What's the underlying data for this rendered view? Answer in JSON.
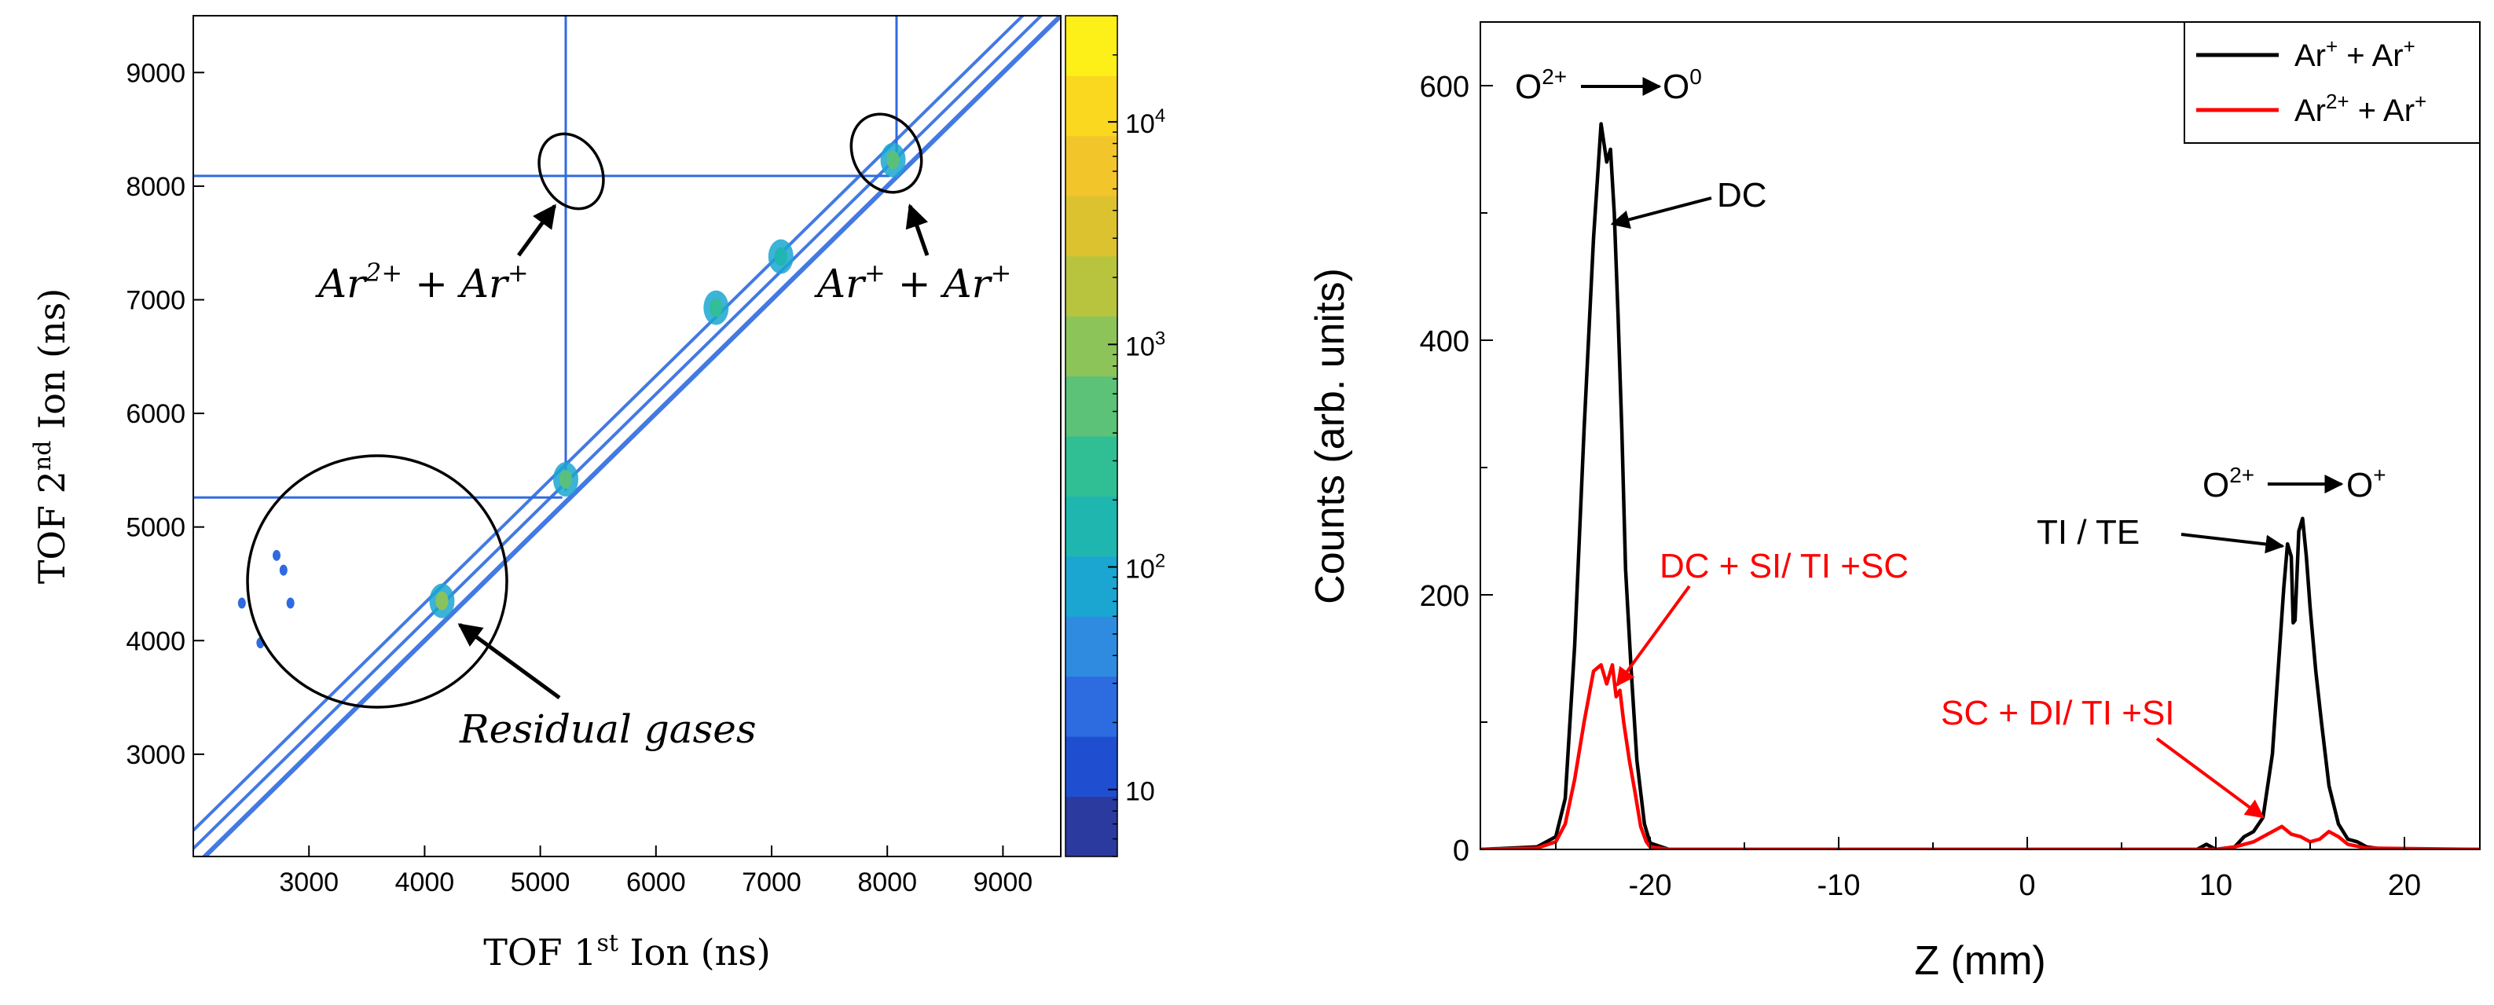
{
  "chart_data": [
    {
      "type": "heatmap",
      "title": "",
      "xlabel": {
        "prefix": "TOF 1",
        "sup": "st",
        "suffix": " Ion (ns)"
      },
      "ylabel": {
        "prefix": "TOF 2",
        "sup": "nd",
        "suffix": " Ion (ns)"
      },
      "xlim": [
        2000,
        9500
      ],
      "ylim": [
        2100,
        9500
      ],
      "xticks": [
        3000,
        4000,
        5000,
        6000,
        7000,
        8000,
        9000
      ],
      "yticks": [
        3000,
        4000,
        5000,
        6000,
        7000,
        8000,
        9000
      ],
      "colorbar": {
        "scale": "log",
        "range": [
          5,
          30000
        ],
        "ticks": [
          {
            "value": 10,
            "base": "10",
            "exp": ""
          },
          {
            "value": 100,
            "base": "10",
            "exp": "2"
          },
          {
            "value": 1000,
            "base": "10",
            "exp": "3"
          },
          {
            "value": 10000,
            "base": "10",
            "exp": "4"
          }
        ],
        "colors": [
          "#2b3a9e",
          "#1f4fd0",
          "#2d6be0",
          "#2f8be0",
          "#1aa6d0",
          "#1fb6b0",
          "#30bf95",
          "#5cc277",
          "#8cc45a",
          "#b9c43e",
          "#dcc22f",
          "#f2c52a",
          "#fbd820",
          "#fdf018"
        ]
      },
      "features": {
        "diagonals_offset_ns": [
          0,
          170,
          330
        ],
        "vertical_lines_ns": [
          5220,
          8080
        ],
        "horizontal_lines_ns": [
          5260,
          8090
        ],
        "hot_spots": [
          {
            "x": 4150,
            "y": 4350,
            "level": 4
          },
          {
            "x": 5220,
            "y": 5420,
            "level": 3
          },
          {
            "x": 8050,
            "y": 8230,
            "level": 3
          },
          {
            "x": 6520,
            "y": 6930,
            "level": 2
          },
          {
            "x": 7080,
            "y": 7380,
            "level": 1
          }
        ],
        "residual_gas_points": [
          {
            "x": 2420,
            "y": 4330
          },
          {
            "x": 2580,
            "y": 3980
          },
          {
            "x": 2720,
            "y": 4750
          },
          {
            "x": 2840,
            "y": 4330
          },
          {
            "x": 2780,
            "y": 4620
          }
        ]
      },
      "annotations": [
        {
          "name": "ar2-ar1",
          "base1": "Ar",
          "sup1": "2+",
          "op": " + ",
          "base2": "Ar",
          "sup2": "+",
          "circle_center": [
            5270,
            8100
          ]
        },
        {
          "name": "ar1-ar1",
          "base1": "Ar",
          "sup1": "+",
          "op": " + ",
          "base2": "Ar",
          "sup2": "+",
          "circle_center": [
            8000,
            8200
          ]
        },
        {
          "name": "residual",
          "text": "Residual gases",
          "circle_center": [
            3650,
            4300
          ]
        }
      ]
    },
    {
      "type": "line",
      "title": "",
      "xlabel": "Z (mm)",
      "ylabel": "Counts (arb. units)",
      "xlim": [
        -29,
        24
      ],
      "ylim": [
        0,
        650
      ],
      "xticks": [
        -20,
        -10,
        0,
        10,
        20
      ],
      "yticks": [
        0,
        200,
        400,
        600
      ],
      "series": [
        {
          "name": "Ar+ + Ar+",
          "legend": {
            "base1": "Ar",
            "sup1": "+",
            "op": " + ",
            "base2": "Ar",
            "sup2": "+"
          },
          "color": "#000000",
          "x": [
            -29,
            -26,
            -25,
            -24.5,
            -24,
            -23.5,
            -23,
            -22.6,
            -22.3,
            -22.1,
            -21.9,
            -21.7,
            -21.5,
            -21.3,
            -21,
            -20.7,
            -20.3,
            -20,
            -19,
            -10,
            0,
            9,
            9.5,
            10,
            11,
            11.5,
            12,
            12.5,
            13,
            13.3,
            13.6,
            13.8,
            14,
            14.1,
            14.2,
            14.4,
            14.6,
            14.8,
            15,
            15.3,
            15.6,
            16,
            16.5,
            17,
            17.5,
            18,
            19,
            24
          ],
          "y": [
            0,
            2,
            10,
            40,
            160,
            330,
            480,
            570,
            540,
            550,
            500,
            420,
            330,
            220,
            140,
            70,
            20,
            5,
            0,
            0,
            0,
            0,
            4,
            0,
            2,
            10,
            14,
            25,
            75,
            140,
            205,
            240,
            230,
            178,
            180,
            250,
            260,
            230,
            190,
            140,
            100,
            50,
            20,
            8,
            6,
            2,
            0,
            0
          ]
        },
        {
          "name": "Ar2+ + Ar+",
          "legend": {
            "base1": "Ar",
            "sup1": "2+",
            "op": " + ",
            "base2": "Ar",
            "sup2": "+"
          },
          "color": "#ff0000",
          "x": [
            -29,
            -26,
            -25,
            -24.5,
            -24,
            -23.5,
            -23,
            -22.6,
            -22.3,
            -22,
            -21.8,
            -21.6,
            -21.4,
            -21.1,
            -20.8,
            -20.5,
            -20.2,
            -20,
            -19,
            -10,
            0,
            10,
            11,
            12,
            12.5,
            13,
            13.5,
            14,
            14.5,
            15,
            15.5,
            16,
            16.5,
            17,
            18,
            24
          ],
          "y": [
            0,
            1,
            6,
            20,
            55,
            100,
            140,
            145,
            130,
            145,
            120,
            125,
            100,
            70,
            45,
            18,
            6,
            2,
            0,
            0,
            0,
            0,
            2,
            6,
            10,
            14,
            18,
            12,
            10,
            6,
            8,
            14,
            10,
            4,
            1,
            0
          ]
        }
      ],
      "legend_placement": "top-right",
      "annotations": [
        {
          "name": "o2-o0",
          "from_base": "O",
          "from_sup": "2+",
          "to_base": "O",
          "to_sup": "0"
        },
        {
          "name": "o2-o1",
          "from_base": "O",
          "from_sup": "2+",
          "to_base": "O",
          "to_sup": "+"
        },
        {
          "name": "dc",
          "text": "DC",
          "color": "#000000"
        },
        {
          "name": "ti-te",
          "text": "TI / TE",
          "color": "#000000"
        },
        {
          "name": "dc-si",
          "text": "DC + SI/ TI +SC",
          "color": "#ff0000"
        },
        {
          "name": "sc-di",
          "text": "SC + DI/ TI +SI",
          "color": "#ff0000"
        }
      ]
    }
  ]
}
